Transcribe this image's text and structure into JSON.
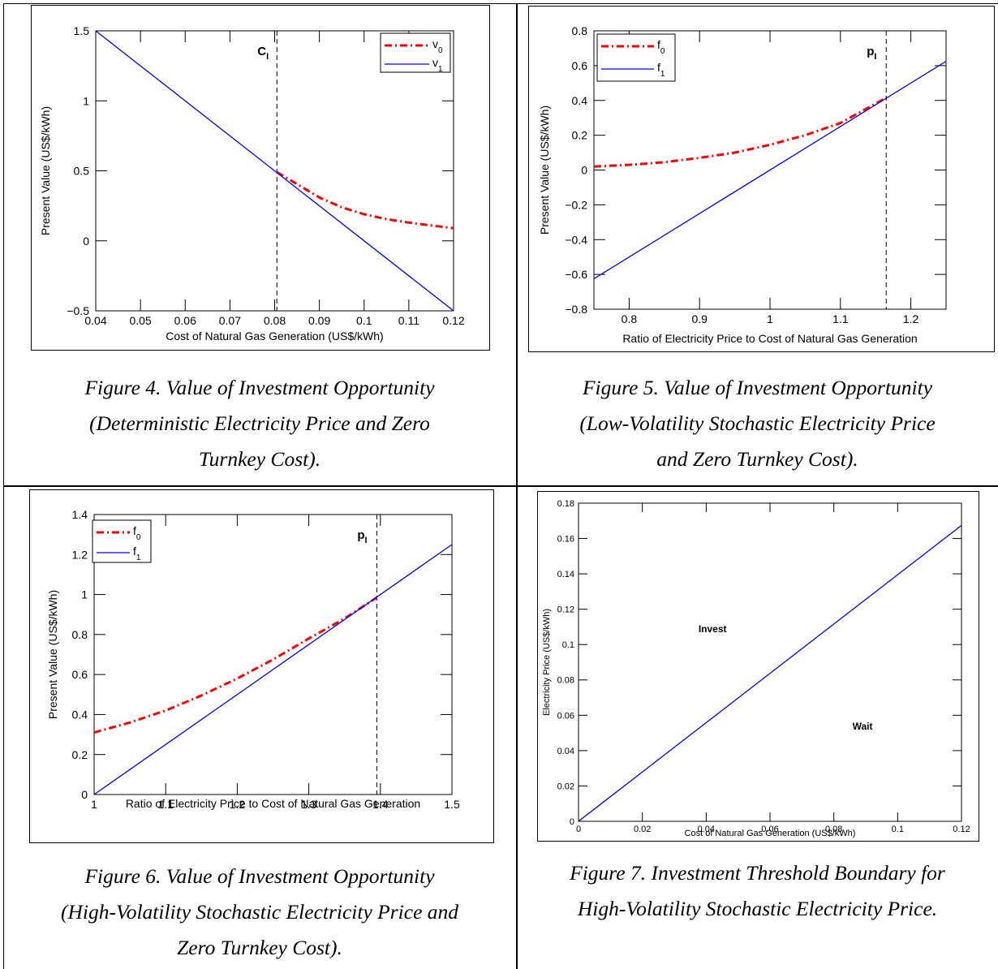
{
  "captions": {
    "fig4": [
      "Figure 4.  Value of Investment Opportunity",
      "(Deterministic Electricity Price and Zero",
      "Turnkey Cost)."
    ],
    "fig5": [
      "Figure 5.  Value of Investment Opportunity",
      "(Low-Volatility Stochastic Electricity Price",
      "and Zero Turnkey Cost)."
    ],
    "fig6": [
      "Figure 6.  Value of Investment Opportunity",
      "(High-Volatility Stochastic Electricity Price and",
      "Zero Turnkey Cost)."
    ],
    "fig7": [
      "Figure 7.  Investment Threshold Boundary for",
      "High-Volatility Stochastic Electricity Price."
    ]
  },
  "chart_data": [
    {
      "id": "fig4",
      "type": "line",
      "xlabel": "Cost of Natural Gas Generation (US$/kWh)",
      "ylabel": "Present Value (US$/kWh)",
      "xlim": [
        0.04,
        0.12
      ],
      "ylim": [
        -0.5,
        1.5
      ],
      "xticks": [
        0.04,
        0.05,
        0.06,
        0.07,
        0.08,
        0.09,
        0.1,
        0.11,
        0.12
      ],
      "xticklabels": [
        "0.04",
        "0.05",
        "0.06",
        "0.07",
        "0.08",
        "0.09",
        "0.1",
        "0.11",
        "0.12"
      ],
      "yticks": [
        -0.5,
        0,
        0.5,
        1,
        1.5
      ],
      "yticklabels": [
        "−0.5",
        "0",
        "0.5",
        "1",
        "1.5"
      ],
      "legend_position": "top-right",
      "vline": {
        "x": 0.0805,
        "label": "C",
        "label_sub": "I"
      },
      "series": [
        {
          "name": "v",
          "sub": "0",
          "style": "dashdot",
          "color": "#ff0000",
          "x": [
            0.0805,
            0.085,
            0.09,
            0.095,
            0.1,
            0.105,
            0.11,
            0.115,
            0.12
          ],
          "y": [
            0.49,
            0.405,
            0.31,
            0.24,
            0.19,
            0.155,
            0.13,
            0.11,
            0.09
          ]
        },
        {
          "name": "v",
          "sub": "1",
          "style": "solid",
          "color": "#0000ff",
          "x": [
            0.04,
            0.12
          ],
          "y": [
            1.5,
            -0.5
          ]
        }
      ]
    },
    {
      "id": "fig5",
      "type": "line",
      "xlabel": "Ratio of Electricity Price to Cost of Natural Gas Generation",
      "ylabel": "Present Value (US$/kWh)",
      "xlim": [
        0.75,
        1.25
      ],
      "ylim": [
        -0.8,
        0.8
      ],
      "xticks": [
        0.8,
        0.9,
        1,
        1.1,
        1.2
      ],
      "xticklabels": [
        "0.8",
        "0.9",
        "1",
        "1.1",
        "1.2"
      ],
      "yticks": [
        -0.8,
        -0.6,
        -0.4,
        -0.2,
        0,
        0.2,
        0.4,
        0.6,
        0.8
      ],
      "yticklabels": [
        "−0.8",
        "−0.6",
        "−0.4",
        "−0.2",
        "0",
        "0.2",
        "0.4",
        "0.6",
        "0.8"
      ],
      "legend_position": "top-left",
      "vline": {
        "x": 1.165,
        "label": "p",
        "label_sub": "I"
      },
      "series": [
        {
          "name": "f",
          "sub": "0",
          "style": "dashdot",
          "color": "#ff0000",
          "x": [
            0.75,
            0.8,
            0.85,
            0.9,
            0.95,
            1.0,
            1.05,
            1.1,
            1.165
          ],
          "y": [
            0.02,
            0.03,
            0.045,
            0.07,
            0.1,
            0.145,
            0.2,
            0.27,
            0.415
          ]
        },
        {
          "name": "f",
          "sub": "1",
          "style": "solid",
          "color": "#0000ff",
          "x": [
            0.75,
            1.25
          ],
          "y": [
            -0.625,
            0.625
          ]
        }
      ]
    },
    {
      "id": "fig6",
      "type": "line",
      "xlabel": "Ratio of Electricity Price to Cost of Natural Gas Generation",
      "ylabel": "Present Value (US$/kWh)",
      "xlim": [
        1,
        1.5
      ],
      "ylim": [
        0,
        1.4
      ],
      "xticks": [
        1,
        1.1,
        1.2,
        1.3,
        1.4,
        1.5
      ],
      "xticklabels": [
        "1",
        "1.1",
        "1.2",
        "1.3",
        "1.4",
        "1.5"
      ],
      "yticks": [
        0,
        0.2,
        0.4,
        0.6,
        0.8,
        1,
        1.2,
        1.4
      ],
      "yticklabels": [
        "0",
        "0.2",
        "0.4",
        "0.6",
        "0.8",
        "1",
        "1.2",
        "1.4"
      ],
      "legend_position": "top-left",
      "vline": {
        "x": 1.395,
        "label": "p",
        "label_sub": "I"
      },
      "series": [
        {
          "name": "f",
          "sub": "0",
          "style": "dashdot",
          "color": "#ff0000",
          "x": [
            1.0,
            1.05,
            1.1,
            1.15,
            1.2,
            1.25,
            1.3,
            1.35,
            1.395
          ],
          "y": [
            0.31,
            0.36,
            0.42,
            0.495,
            0.58,
            0.675,
            0.78,
            0.88,
            0.985
          ]
        },
        {
          "name": "f",
          "sub": "1",
          "style": "solid",
          "color": "#0000ff",
          "x": [
            1.0,
            1.5
          ],
          "y": [
            0,
            1.25
          ]
        }
      ]
    },
    {
      "id": "fig7",
      "type": "line",
      "xlabel": "Cost of Natural Gas Generation (US$/kWh)",
      "ylabel": "Electricity Price (US$/kWh)",
      "xlim": [
        0,
        0.12
      ],
      "ylim": [
        0,
        0.18
      ],
      "xticks": [
        0,
        0.02,
        0.04,
        0.06,
        0.08,
        0.1,
        0.12
      ],
      "xticklabels": [
        "0",
        "0.02",
        "0.04",
        "0.06",
        "0.08",
        "0.1",
        "0.12"
      ],
      "yticks": [
        0,
        0.02,
        0.04,
        0.06,
        0.08,
        0.1,
        0.12,
        0.14,
        0.16,
        0.18
      ],
      "yticklabels": [
        "0",
        "0.02",
        "0.04",
        "0.06",
        "0.08",
        "0.1",
        "0.12",
        "0.14",
        "0.16",
        "0.18"
      ],
      "annotations": [
        {
          "text": "Invest",
          "x": 0.042,
          "y": 0.107
        },
        {
          "text": "Wait",
          "x": 0.089,
          "y": 0.052
        }
      ],
      "series": [
        {
          "name": "",
          "style": "solid",
          "color": "#0000ff",
          "x": [
            0,
            0.12
          ],
          "y": [
            0,
            0.1674
          ]
        }
      ]
    }
  ]
}
